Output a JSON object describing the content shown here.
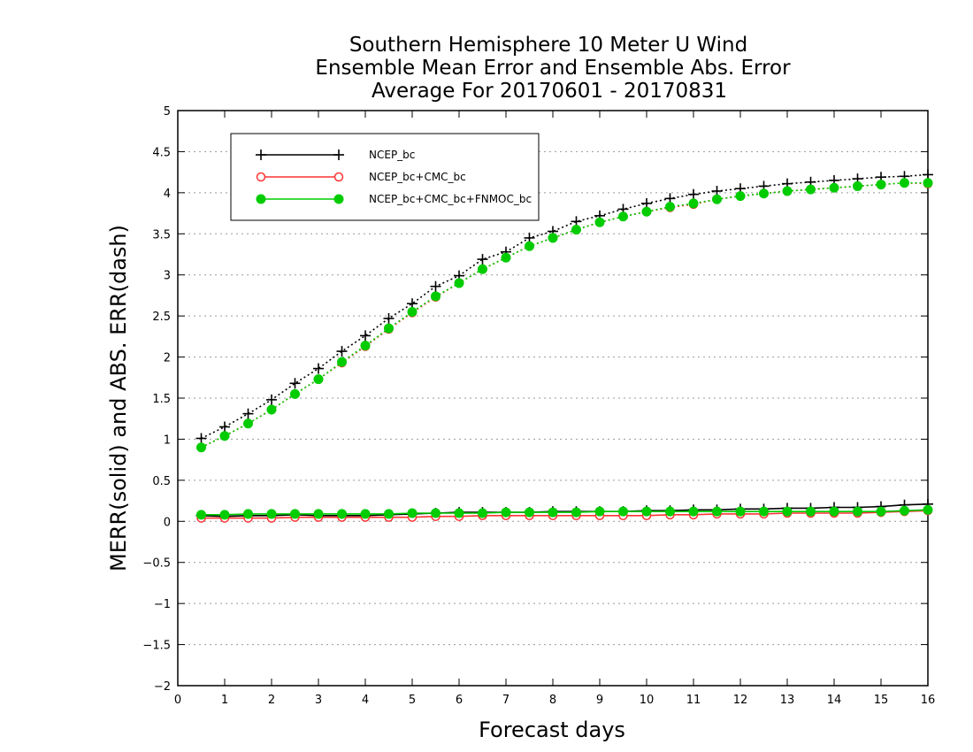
{
  "chart_data": {
    "type": "line",
    "title_lines": [
      "Southern Hemisphere 10 Meter U Wind",
      "Ensemble Mean Error and Ensemble Abs. Error",
      "Average For 20170601 - 20170831"
    ],
    "xlabel": "Forecast days",
    "ylabel": "MERR(solid) and ABS. ERR(dash)",
    "xlim": [
      0,
      16
    ],
    "ylim": [
      -2,
      5
    ],
    "x_ticks": [
      "0",
      "1",
      "2",
      "3",
      "4",
      "5",
      "6",
      "7",
      "8",
      "9",
      "10",
      "11",
      "12",
      "13",
      "14",
      "15",
      "16"
    ],
    "y_ticks": [
      "5",
      "4.5",
      "4",
      "3.5",
      "3",
      "2.5",
      "2",
      "1.5",
      "1",
      "0.5",
      "0",
      "−0.5",
      "−1",
      "−1.5",
      "−2"
    ],
    "grid": true,
    "legend_position": "top-left",
    "x": [
      0.5,
      1,
      1.5,
      2,
      2.5,
      3,
      3.5,
      4,
      4.5,
      5,
      5.5,
      6,
      6.5,
      7,
      7.5,
      8,
      8.5,
      9,
      9.5,
      10,
      10.5,
      11,
      11.5,
      12,
      12.5,
      13,
      13.5,
      14,
      14.5,
      15,
      15.5,
      16
    ],
    "series": [
      {
        "name": "NCEP_bc",
        "color": "#000000",
        "marker": "plus",
        "merr_solid": [
          0.07,
          0.06,
          0.07,
          0.07,
          0.08,
          0.07,
          0.07,
          0.07,
          0.08,
          0.09,
          0.1,
          0.11,
          0.11,
          0.11,
          0.11,
          0.12,
          0.12,
          0.12,
          0.12,
          0.13,
          0.13,
          0.14,
          0.14,
          0.15,
          0.15,
          0.16,
          0.16,
          0.17,
          0.17,
          0.18,
          0.2,
          0.21
        ],
        "abs_err_dash": [
          1.01,
          1.15,
          1.31,
          1.48,
          1.68,
          1.86,
          2.07,
          2.26,
          2.47,
          2.65,
          2.86,
          2.99,
          3.19,
          3.28,
          3.45,
          3.53,
          3.65,
          3.72,
          3.8,
          3.87,
          3.93,
          3.98,
          4.02,
          4.05,
          4.08,
          4.11,
          4.13,
          4.15,
          4.17,
          4.19,
          4.2,
          4.22
        ]
      },
      {
        "name": "NCEP_bc+CMC_bc",
        "color": "#ff3333",
        "marker": "open-circle",
        "merr_solid": [
          0.04,
          0.04,
          0.04,
          0.04,
          0.05,
          0.05,
          0.05,
          0.05,
          0.05,
          0.05,
          0.06,
          0.06,
          0.07,
          0.07,
          0.07,
          0.07,
          0.07,
          0.07,
          0.07,
          0.07,
          0.08,
          0.08,
          0.09,
          0.09,
          0.09,
          0.1,
          0.1,
          0.1,
          0.1,
          0.11,
          0.12,
          0.13
        ],
        "abs_err_dash": [
          0.9,
          1.04,
          1.19,
          1.36,
          1.55,
          1.73,
          1.93,
          2.13,
          2.34,
          2.54,
          2.73,
          2.9,
          3.07,
          3.21,
          3.35,
          3.45,
          3.55,
          3.64,
          3.71,
          3.77,
          3.82,
          3.86,
          3.92,
          3.96,
          3.99,
          4.02,
          4.04,
          4.06,
          4.08,
          4.1,
          4.12,
          4.11
        ]
      },
      {
        "name": "NCEP_bc+CMC_bc+FNMOC_bc",
        "color": "#00cc00",
        "marker": "filled-circle",
        "merr_solid": [
          0.08,
          0.08,
          0.09,
          0.09,
          0.09,
          0.09,
          0.09,
          0.09,
          0.09,
          0.1,
          0.1,
          0.1,
          0.1,
          0.11,
          0.11,
          0.11,
          0.11,
          0.12,
          0.12,
          0.12,
          0.12,
          0.12,
          0.12,
          0.12,
          0.12,
          0.12,
          0.12,
          0.12,
          0.12,
          0.12,
          0.13,
          0.14
        ],
        "abs_err_dash": [
          0.9,
          1.04,
          1.19,
          1.36,
          1.55,
          1.73,
          1.94,
          2.14,
          2.35,
          2.55,
          2.74,
          2.9,
          3.07,
          3.21,
          3.35,
          3.45,
          3.55,
          3.64,
          3.71,
          3.77,
          3.83,
          3.87,
          3.92,
          3.96,
          3.99,
          4.02,
          4.04,
          4.06,
          4.08,
          4.1,
          4.12,
          4.12
        ]
      }
    ]
  }
}
